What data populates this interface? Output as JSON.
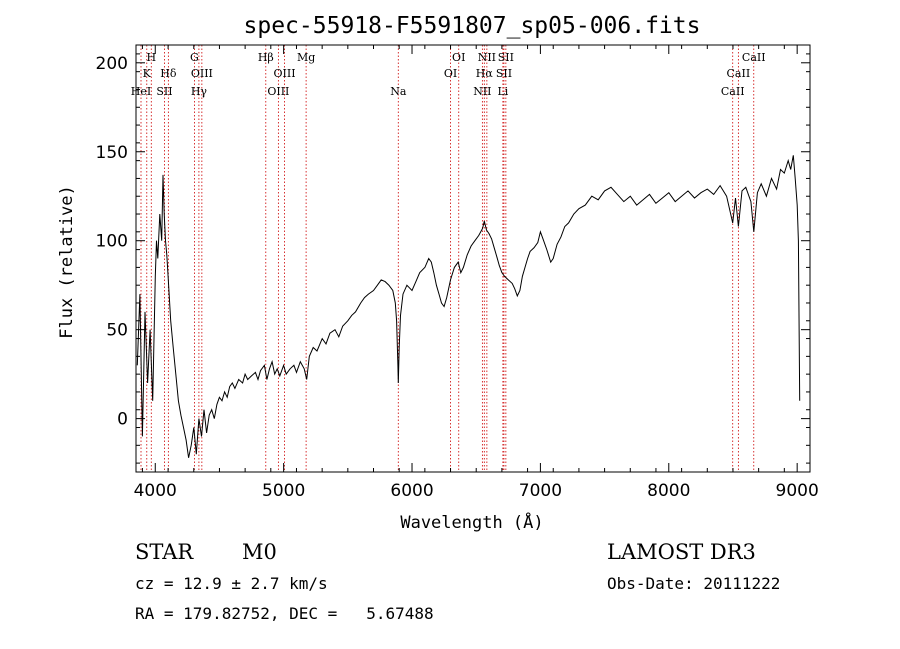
{
  "chart_data": {
    "type": "line",
    "title": "spec-55918-F5591807_sp05-006.fits",
    "xlabel": "Wavelength (Å)",
    "ylabel": "Flux (relative)",
    "xlim": [
      3850,
      9100
    ],
    "ylim": [
      -30,
      210
    ],
    "x_ticks": [
      4000,
      5000,
      6000,
      7000,
      8000,
      9000
    ],
    "y_ticks": [
      0,
      50,
      100,
      150,
      200
    ],
    "series": [
      {
        "name": "flux",
        "points": [
          [
            3860,
            30
          ],
          [
            3880,
            70
          ],
          [
            3900,
            -10
          ],
          [
            3920,
            60
          ],
          [
            3940,
            20
          ],
          [
            3960,
            50
          ],
          [
            3980,
            10
          ],
          [
            4000,
            80
          ],
          [
            4010,
            100
          ],
          [
            4020,
            90
          ],
          [
            4035,
            115
          ],
          [
            4050,
            100
          ],
          [
            4060,
            137
          ],
          [
            4070,
            115
          ],
          [
            4080,
            100
          ],
          [
            4090,
            92
          ],
          [
            4100,
            80
          ],
          [
            4120,
            55
          ],
          [
            4140,
            40
          ],
          [
            4160,
            25
          ],
          [
            4180,
            10
          ],
          [
            4200,
            2
          ],
          [
            4220,
            -5
          ],
          [
            4240,
            -12
          ],
          [
            4260,
            -22
          ],
          [
            4280,
            -15
          ],
          [
            4300,
            -5
          ],
          [
            4320,
            -20
          ],
          [
            4340,
            0
          ],
          [
            4360,
            -10
          ],
          [
            4380,
            5
          ],
          [
            4400,
            -8
          ],
          [
            4420,
            2
          ],
          [
            4440,
            5
          ],
          [
            4460,
            0
          ],
          [
            4480,
            8
          ],
          [
            4500,
            12
          ],
          [
            4520,
            10
          ],
          [
            4540,
            15
          ],
          [
            4560,
            12
          ],
          [
            4580,
            18
          ],
          [
            4600,
            20
          ],
          [
            4620,
            17
          ],
          [
            4650,
            22
          ],
          [
            4680,
            20
          ],
          [
            4700,
            25
          ],
          [
            4720,
            22
          ],
          [
            4750,
            24
          ],
          [
            4780,
            26
          ],
          [
            4800,
            22
          ],
          [
            4820,
            27
          ],
          [
            4850,
            30
          ],
          [
            4870,
            22
          ],
          [
            4890,
            28
          ],
          [
            4910,
            32
          ],
          [
            4930,
            25
          ],
          [
            4950,
            28
          ],
          [
            4970,
            24
          ],
          [
            5000,
            30
          ],
          [
            5020,
            25
          ],
          [
            5050,
            28
          ],
          [
            5080,
            30
          ],
          [
            5100,
            26
          ],
          [
            5130,
            32
          ],
          [
            5160,
            28
          ],
          [
            5180,
            22
          ],
          [
            5200,
            35
          ],
          [
            5230,
            40
          ],
          [
            5260,
            38
          ],
          [
            5300,
            45
          ],
          [
            5330,
            42
          ],
          [
            5360,
            48
          ],
          [
            5400,
            50
          ],
          [
            5430,
            46
          ],
          [
            5460,
            52
          ],
          [
            5500,
            55
          ],
          [
            5530,
            58
          ],
          [
            5560,
            60
          ],
          [
            5600,
            65
          ],
          [
            5630,
            68
          ],
          [
            5660,
            70
          ],
          [
            5700,
            72
          ],
          [
            5730,
            75
          ],
          [
            5760,
            78
          ],
          [
            5790,
            77
          ],
          [
            5820,
            75
          ],
          [
            5850,
            72
          ],
          [
            5870,
            65
          ],
          [
            5880,
            55
          ],
          [
            5890,
            30
          ],
          [
            5893,
            20
          ],
          [
            5900,
            40
          ],
          [
            5910,
            58
          ],
          [
            5930,
            70
          ],
          [
            5960,
            75
          ],
          [
            6000,
            72
          ],
          [
            6030,
            77
          ],
          [
            6060,
            82
          ],
          [
            6100,
            85
          ],
          [
            6130,
            90
          ],
          [
            6150,
            88
          ],
          [
            6170,
            82
          ],
          [
            6190,
            75
          ],
          [
            6210,
            70
          ],
          [
            6230,
            65
          ],
          [
            6250,
            63
          ],
          [
            6270,
            68
          ],
          [
            6300,
            78
          ],
          [
            6330,
            85
          ],
          [
            6360,
            88
          ],
          [
            6380,
            82
          ],
          [
            6400,
            85
          ],
          [
            6430,
            92
          ],
          [
            6460,
            97
          ],
          [
            6490,
            100
          ],
          [
            6520,
            103
          ],
          [
            6550,
            107
          ],
          [
            6563,
            111
          ],
          [
            6580,
            106
          ],
          [
            6600,
            104
          ],
          [
            6620,
            101
          ],
          [
            6640,
            96
          ],
          [
            6660,
            91
          ],
          [
            6680,
            86
          ],
          [
            6700,
            82
          ],
          [
            6720,
            80
          ],
          [
            6750,
            78
          ],
          [
            6780,
            76
          ],
          [
            6800,
            73
          ],
          [
            6820,
            69
          ],
          [
            6840,
            72
          ],
          [
            6860,
            80
          ],
          [
            6880,
            85
          ],
          [
            6900,
            90
          ],
          [
            6920,
            94
          ],
          [
            6950,
            96
          ],
          [
            6980,
            99
          ],
          [
            7000,
            105
          ],
          [
            7020,
            101
          ],
          [
            7050,
            95
          ],
          [
            7080,
            88
          ],
          [
            7100,
            90
          ],
          [
            7130,
            98
          ],
          [
            7160,
            102
          ],
          [
            7190,
            108
          ],
          [
            7220,
            110
          ],
          [
            7260,
            115
          ],
          [
            7300,
            118
          ],
          [
            7350,
            120
          ],
          [
            7400,
            125
          ],
          [
            7450,
            123
          ],
          [
            7500,
            128
          ],
          [
            7550,
            130
          ],
          [
            7600,
            126
          ],
          [
            7650,
            122
          ],
          [
            7700,
            125
          ],
          [
            7750,
            120
          ],
          [
            7800,
            123
          ],
          [
            7850,
            126
          ],
          [
            7900,
            121
          ],
          [
            7950,
            124
          ],
          [
            8000,
            127
          ],
          [
            8050,
            122
          ],
          [
            8100,
            125
          ],
          [
            8150,
            128
          ],
          [
            8200,
            124
          ],
          [
            8250,
            127
          ],
          [
            8300,
            129
          ],
          [
            8350,
            126
          ],
          [
            8400,
            131
          ],
          [
            8450,
            125
          ],
          [
            8498,
            110
          ],
          [
            8520,
            124
          ],
          [
            8542,
            108
          ],
          [
            8570,
            128
          ],
          [
            8600,
            130
          ],
          [
            8640,
            122
          ],
          [
            8662,
            105
          ],
          [
            8690,
            127
          ],
          [
            8720,
            132
          ],
          [
            8760,
            125
          ],
          [
            8800,
            135
          ],
          [
            8840,
            129
          ],
          [
            8870,
            140
          ],
          [
            8900,
            138
          ],
          [
            8930,
            145
          ],
          [
            8950,
            140
          ],
          [
            8970,
            148
          ],
          [
            8985,
            135
          ],
          [
            9000,
            120
          ],
          [
            9010,
            100
          ],
          [
            9020,
            10
          ]
        ]
      }
    ],
    "spectral_lines": [
      {
        "label": "HeI",
        "wavelength": 3889,
        "row": 3
      },
      {
        "label": "K",
        "wavelength": 3934,
        "row": 2
      },
      {
        "label": "H",
        "wavelength": 3969,
        "row": 1
      },
      {
        "label": "SII",
        "wavelength": 4072,
        "row": 3
      },
      {
        "label": "Hδ",
        "wavelength": 4102,
        "row": 2
      },
      {
        "label": "G",
        "wavelength": 4305,
        "row": 1
      },
      {
        "label": "Hγ",
        "wavelength": 4340,
        "row": 3
      },
      {
        "label": "OIII",
        "wavelength": 4363,
        "row": 2
      },
      {
        "label": "Hβ",
        "wavelength": 4861,
        "row": 1
      },
      {
        "label": "OIII",
        "wavelength": 4959,
        "row": 3
      },
      {
        "label": "OIII",
        "wavelength": 5007,
        "row": 2
      },
      {
        "label": "Mg",
        "wavelength": 5175,
        "row": 1
      },
      {
        "label": "Na",
        "wavelength": 5893,
        "row": 3
      },
      {
        "label": "OI",
        "wavelength": 6300,
        "row": 2
      },
      {
        "label": "OI",
        "wavelength": 6364,
        "row": 1
      },
      {
        "label": "NII",
        "wavelength": 6548,
        "row": 3
      },
      {
        "label": "Hα",
        "wavelength": 6563,
        "row": 2
      },
      {
        "label": "NII",
        "wavelength": 6583,
        "row": 1
      },
      {
        "label": "Li",
        "wavelength": 6708,
        "row": 3
      },
      {
        "label": "SII",
        "wavelength": 6716,
        "row": 2
      },
      {
        "label": "SII",
        "wavelength": 6731,
        "row": 1
      },
      {
        "label": "CaII",
        "wavelength": 8498,
        "row": 3
      },
      {
        "label": "CaII",
        "wavelength": 8542,
        "row": 2
      },
      {
        "label": "CaII",
        "wavelength": 8662,
        "row": 1
      }
    ],
    "line_marker_color": "#cc0000",
    "line_color": "#000000"
  },
  "info": {
    "object_class": "STAR",
    "subclass": "M0",
    "survey": "LAMOST DR3",
    "cz": "cz = 12.9 ± 2.7 km/s",
    "obs_date": "Obs-Date: 20111222",
    "coords": "RA = 179.82752, DEC =   5.67488"
  }
}
